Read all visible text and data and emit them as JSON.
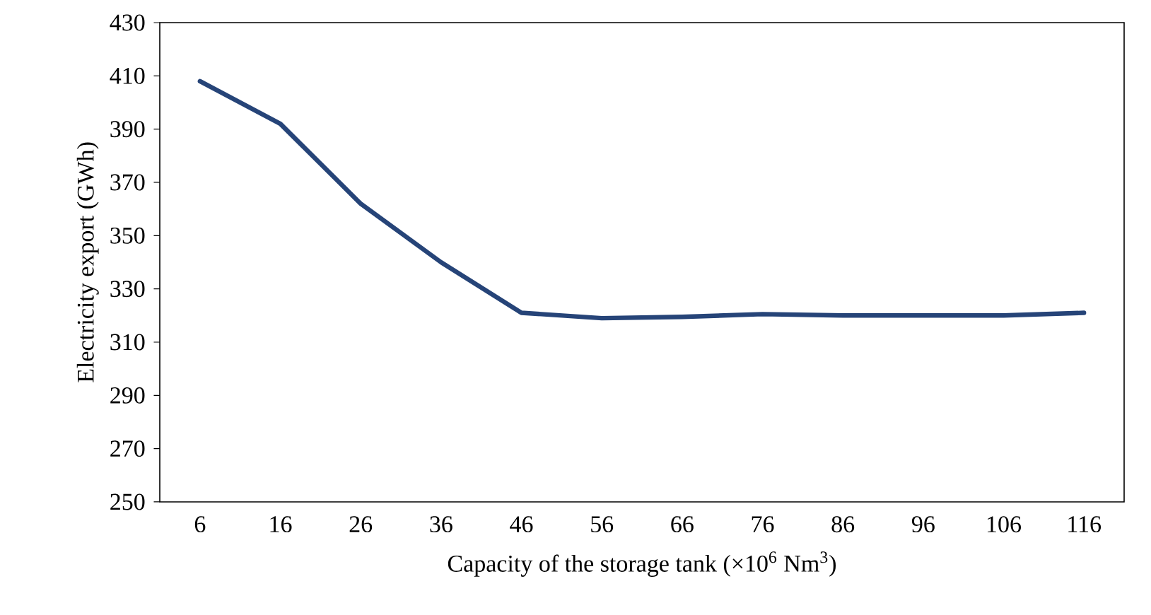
{
  "chart_data": {
    "type": "line",
    "xlabel": "Capacity of the storage tank (×10$^{6}$ Nm$^{3}$)",
    "ylabel": "Electricity export (GWh)",
    "categories": [
      "6",
      "16",
      "26",
      "36",
      "46",
      "56",
      "66",
      "76",
      "86",
      "96",
      "106",
      "116"
    ],
    "series": [
      {
        "color": "#264478",
        "values": [
          408,
          392,
          362,
          340,
          321,
          319,
          319.5,
          320.5,
          320,
          320,
          320,
          321
        ]
      }
    ],
    "ylim": [
      250,
      430
    ],
    "yticks": [
      250,
      270,
      290,
      310,
      330,
      350,
      370,
      390,
      410,
      430
    ]
  }
}
